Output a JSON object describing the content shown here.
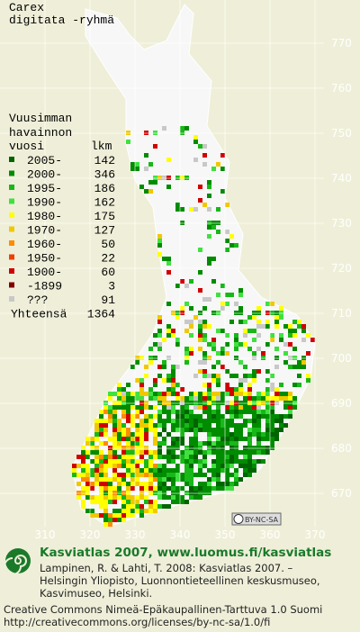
{
  "title": [
    "Carex",
    "digitata -ryhmä"
  ],
  "legend": {
    "heading": [
      "Vuusimman",
      "havainnon"
    ],
    "period_header": "vuosi",
    "count_header": "lkm",
    "rows": [
      {
        "label": "2005-",
        "count": 142,
        "color": "#006400"
      },
      {
        "label": "2000-",
        "count": 346,
        "color": "#008c00"
      },
      {
        "label": "1995-",
        "count": 186,
        "color": "#18b818"
      },
      {
        "label": "1990-",
        "count": 162,
        "color": "#40e040"
      },
      {
        "label": "1980-",
        "count": 175,
        "color": "#ffff00"
      },
      {
        "label": "1970-",
        "count": 127,
        "color": "#f0c800"
      },
      {
        "label": "1960-",
        "count": 50,
        "color": "#ff8c00"
      },
      {
        "label": "1950-",
        "count": 22,
        "color": "#f04000"
      },
      {
        "label": "1900-",
        "count": 60,
        "color": "#d00000"
      },
      {
        "label": "-1899",
        "count": 3,
        "color": "#800000"
      },
      {
        "label": "???",
        "count": 91,
        "color": "#c8c8c8"
      }
    ],
    "total_label": "Yhteensä",
    "total": 1364
  },
  "map": {
    "yticks": [
      670,
      680,
      690,
      700,
      710,
      720,
      730,
      740,
      750,
      760,
      770
    ],
    "xticks": [
      310,
      320,
      330,
      340,
      350,
      360,
      370
    ],
    "license_badge": "BY-NC-SA"
  },
  "footer": {
    "headline": "Kasviatlas 2007, www.luomus.fi/kasviatlas",
    "citation": [
      "Lampinen, R. & Lahti, T. 2008: Kasviatlas 2007. –",
      "Helsingin Yliopisto, Luonnontieteellinen keskusmuseo,",
      "Kasvimuseo, Helsinki."
    ],
    "license": [
      "Creative Commons Nimeä-Epäkaupallinen-Tarttuva 1.0 Suomi",
      "http://creativecommons.org/licenses/by-nc-sa/1.0/fi"
    ]
  }
}
